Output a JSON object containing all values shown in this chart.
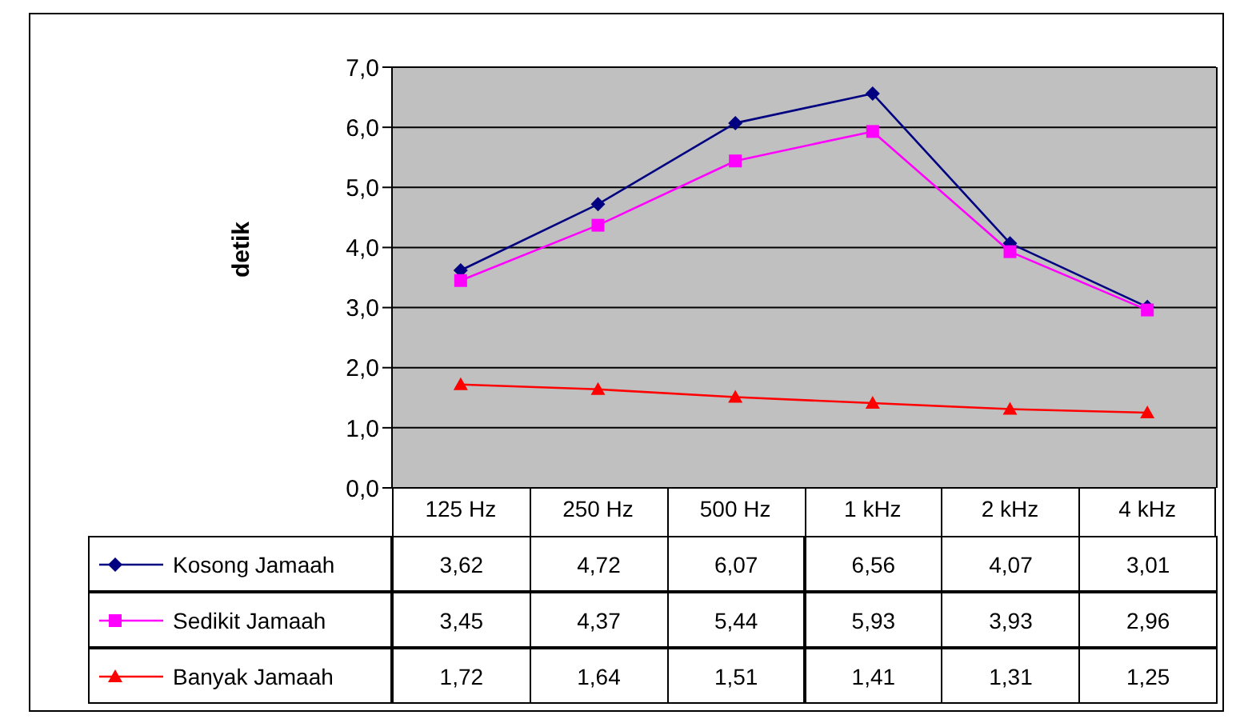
{
  "chart_data": {
    "type": "line",
    "ylabel": "detik",
    "categories": [
      "125 Hz",
      "250 Hz",
      "500 Hz",
      "1 kHz",
      "2 kHz",
      "4 kHz"
    ],
    "series": [
      {
        "name": "Kosong Jamaah",
        "color": "#000080",
        "marker": "diamond",
        "values": [
          3.62,
          4.72,
          6.07,
          6.56,
          4.07,
          3.01
        ],
        "value_labels": [
          "3,62",
          "4,72",
          "6,07",
          "6,56",
          "4,07",
          "3,01"
        ]
      },
      {
        "name": "Sedikit Jamaah",
        "color": "#ff00ff",
        "marker": "square",
        "values": [
          3.45,
          4.37,
          5.44,
          5.93,
          3.93,
          2.96
        ],
        "value_labels": [
          "3,45",
          "4,37",
          "5,44",
          "5,93",
          "3,93",
          "2,96"
        ]
      },
      {
        "name": "Banyak Jamaah",
        "color": "#ff0000",
        "marker": "triangle",
        "values": [
          1.72,
          1.64,
          1.51,
          1.41,
          1.31,
          1.25
        ],
        "value_labels": [
          "1,72",
          "1,64",
          "1,51",
          "1,41",
          "1,31",
          "1,25"
        ]
      }
    ],
    "ylim": [
      0,
      7
    ],
    "yticks": [
      {
        "value": 0,
        "label": "0,0"
      },
      {
        "value": 1,
        "label": "1,0"
      },
      {
        "value": 2,
        "label": "2,0"
      },
      {
        "value": 3,
        "label": "3,0"
      },
      {
        "value": 4,
        "label": "4,0"
      },
      {
        "value": 5,
        "label": "5,0"
      },
      {
        "value": 6,
        "label": "6,0"
      },
      {
        "value": 7,
        "label": "7,0"
      }
    ],
    "grid": "y",
    "legend": "bottom"
  }
}
